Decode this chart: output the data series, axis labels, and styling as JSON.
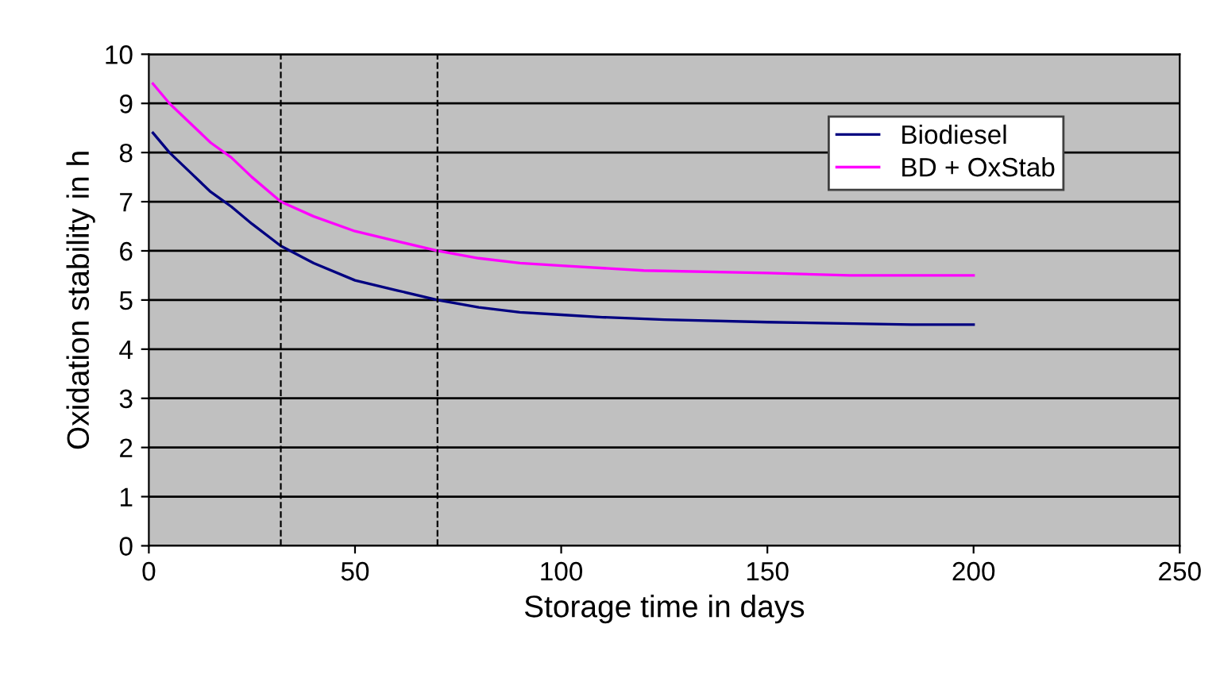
{
  "chart_data": {
    "type": "line",
    "xlabel": "Storage time in days",
    "ylabel": "Oxidation stability in h",
    "series": [
      {
        "name": "Biodiesel",
        "color": "#000080",
        "x": [
          1,
          5,
          10,
          15,
          20,
          25,
          32,
          40,
          50,
          60,
          70,
          80,
          90,
          100,
          110,
          125,
          150,
          185,
          200
        ],
        "values": [
          8.4,
          8.0,
          7.6,
          7.2,
          6.9,
          6.55,
          6.1,
          5.75,
          5.4,
          5.2,
          5.0,
          4.85,
          4.75,
          4.7,
          4.65,
          4.6,
          4.55,
          4.5,
          4.5
        ]
      },
      {
        "name": "BD + OxStab",
        "color": "#ff00ff",
        "x": [
          1,
          5,
          10,
          15,
          20,
          25,
          32,
          40,
          50,
          60,
          70,
          80,
          90,
          100,
          120,
          150,
          170,
          200
        ],
        "values": [
          9.4,
          9.0,
          8.6,
          8.2,
          7.9,
          7.5,
          7.0,
          6.7,
          6.4,
          6.2,
          6.0,
          5.85,
          5.75,
          5.7,
          5.6,
          5.55,
          5.5,
          5.5
        ]
      }
    ],
    "xlim": [
      0,
      250
    ],
    "xticks": [
      0,
      50,
      100,
      150,
      200,
      250
    ],
    "ylim": [
      0,
      10
    ],
    "yticks": [
      0,
      1,
      2,
      3,
      4,
      5,
      6,
      7,
      8,
      9,
      10
    ],
    "ref_lines": [
      {
        "axis": "x",
        "value": 32,
        "line_style": "dashed",
        "color": "#000000"
      },
      {
        "axis": "x",
        "value": 70,
        "line_style": "dashed",
        "color": "#000000"
      }
    ],
    "grid": "y",
    "legend": "top right",
    "marker": "none",
    "line_style": "solid"
  }
}
